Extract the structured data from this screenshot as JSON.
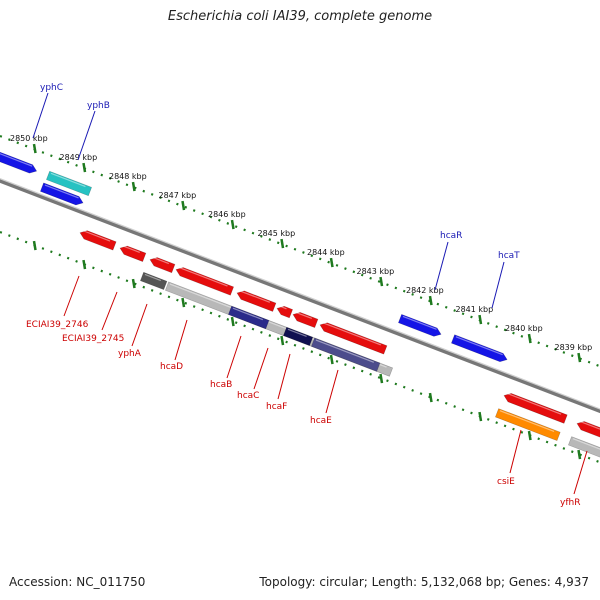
{
  "title": "Escherichia coli IAI39, complete genome",
  "footer": {
    "accession": "Accession: NC_011750",
    "topology": "Topology: circular; Length: 5,132,068 bp; Genes: 4,937"
  },
  "colors": {
    "backbone": "#8a8a8a",
    "tick": "#1f7a1f",
    "forward_gene": "#1515e6",
    "forward_highlight": "#27c2c2",
    "reverse_gene": "#e50d0d",
    "reverse_highlight": "#ff8a00",
    "pseudo": "#b8b8b8",
    "operon_dark": "#2b2b8a",
    "label_top": "#1a1ab4",
    "label_bottom": "#cc0000"
  },
  "map": {
    "kbp_labels": [
      "2850 kbp",
      "2849 kbp",
      "2848 kbp",
      "2847 kbp",
      "2846 kbp",
      "2845 kbp",
      "2844 kbp",
      "2843 kbp",
      "2842 kbp",
      "2841 kbp",
      "2840 kbp",
      "2839 kbp"
    ],
    "top_genes": [
      "yphC",
      "yphB",
      "hcaR",
      "hcaT"
    ],
    "bottom_genes": [
      "ECIAI39_2746",
      "ECIAI39_2745",
      "yphA",
      "hcaD",
      "hcaB",
      "hcaC",
      "hcaF",
      "hcaE",
      "csiE",
      "yfhR"
    ]
  }
}
